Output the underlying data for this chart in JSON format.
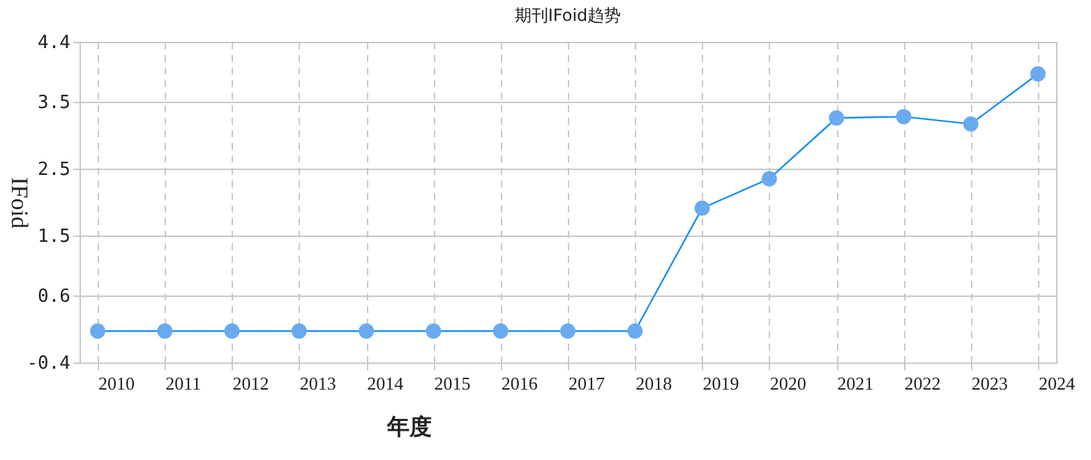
{
  "chart_data": {
    "type": "line",
    "title": "期刊IFoid趋势",
    "xlabel": "年度",
    "ylabel": "IFoid",
    "categories": [
      "2010",
      "2011",
      "2012",
      "2013",
      "2014",
      "2015",
      "2016",
      "2017",
      "2018",
      "2019",
      "2020",
      "2021",
      "2022",
      "2023",
      "2024"
    ],
    "series": [
      {
        "color": "#1a90f0",
        "values": [
          0.07,
          0.07,
          0.07,
          0.07,
          0.07,
          0.07,
          0.07,
          0.07,
          0.07,
          1.91,
          2.35,
          3.26,
          3.28,
          3.17,
          3.92
        ]
      }
    ],
    "ylim": [
      -0.4,
      4.4
    ],
    "yticks": [
      -0.4,
      0.6,
      1.5,
      2.5,
      3.5,
      4.4
    ],
    "grid": true,
    "marker": "circle",
    "line_style": "solid"
  }
}
